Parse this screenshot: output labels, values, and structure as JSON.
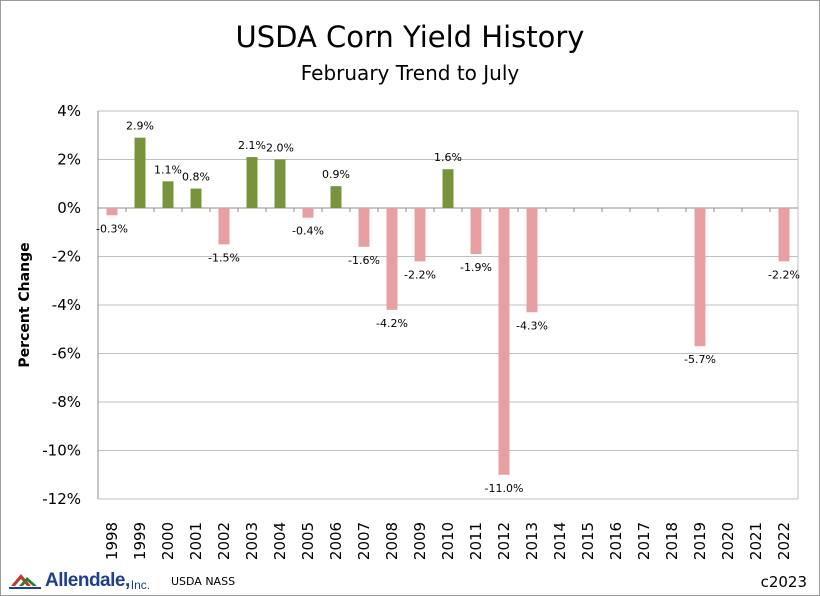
{
  "chart_data": {
    "type": "bar",
    "title": "USDA Corn Yield History",
    "subtitle": "February Trend to July",
    "ylabel": "Percent Change",
    "xlabel": "",
    "ylim": [
      -12,
      4
    ],
    "ytick_step": 2,
    "ytick_labels": [
      "4%",
      "2%",
      "0%",
      "-2%",
      "-4%",
      "-6%",
      "-8%",
      "-10%",
      "-12%"
    ],
    "positive_color": "#77933c",
    "negative_color": "#e6a0a2",
    "grid": true,
    "categories": [
      "1998",
      "1999",
      "2000",
      "2001",
      "2002",
      "2003",
      "2004",
      "2005",
      "2006",
      "2007",
      "2008",
      "2009",
      "2010",
      "2011",
      "2012",
      "2013",
      "2014",
      "2015",
      "2016",
      "2017",
      "2018",
      "2019",
      "2020",
      "2021",
      "2022"
    ],
    "values": [
      -0.3,
      2.9,
      1.1,
      0.8,
      -1.5,
      2.1,
      2.0,
      -0.4,
      0.9,
      -1.6,
      -4.2,
      -2.2,
      1.6,
      -1.9,
      -11.0,
      -4.3,
      null,
      null,
      null,
      null,
      null,
      -5.7,
      null,
      null,
      -2.2
    ],
    "data_labels": [
      "-0.3%",
      "2.9%",
      "1.1%",
      "0.8%",
      "-1.5%",
      "2.1%",
      "2.0%",
      "-0.4%",
      "0.9%",
      "-1.6%",
      "-4.2%",
      "-2.2%",
      "1.6%",
      "-1.9%",
      "-11.0%",
      "-4.3%",
      "",
      "",
      "",
      "",
      "",
      "-5.7%",
      "",
      "",
      "-2.2%"
    ]
  },
  "footer": {
    "logo_text": "Allendale,",
    "logo_suffix": "Inc.",
    "source": "USDA NASS",
    "copyright": "c2023"
  }
}
